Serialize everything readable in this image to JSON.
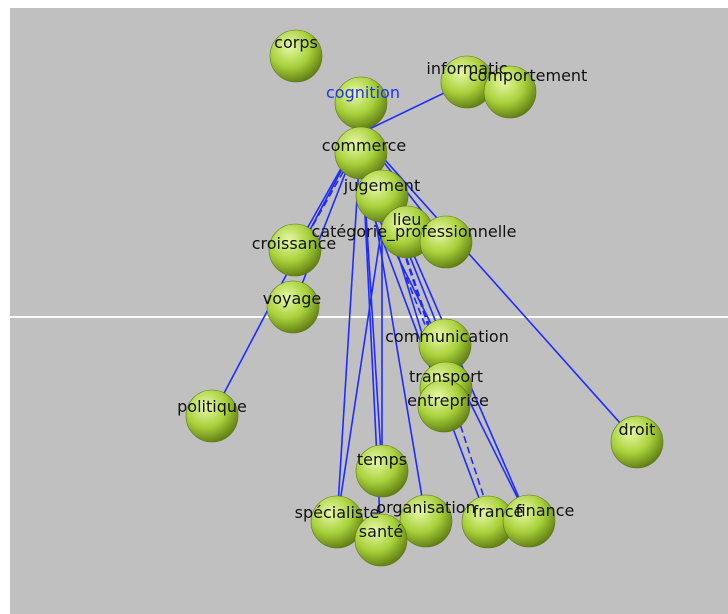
{
  "colors": {
    "background": "#c0c0c0",
    "edge": "#1f2bff",
    "node_fill": "#a8d13a",
    "node_highlight": "#e8f8a8",
    "node_shadow": "#5e7a12",
    "label": "#111111",
    "label_selected": "#2233ee",
    "divider": "#ffffff"
  },
  "graph": {
    "selected_node": "cognition",
    "nodes": [
      {
        "id": "corps",
        "label": "corps"
      },
      {
        "id": "cognition",
        "label": "cognition"
      },
      {
        "id": "informatique",
        "label": "informatic"
      },
      {
        "id": "comportement",
        "label": "comportement"
      },
      {
        "id": "commerce",
        "label": "commerce"
      },
      {
        "id": "jugement",
        "label": "jugement"
      },
      {
        "id": "lieu",
        "label": "lieu"
      },
      {
        "id": "categorie",
        "label": "catégorie_professionnelle"
      },
      {
        "id": "croissance",
        "label": "croissance"
      },
      {
        "id": "voyage",
        "label": "voyage"
      },
      {
        "id": "politique",
        "label": "politique"
      },
      {
        "id": "communication",
        "label": "communication"
      },
      {
        "id": "transport",
        "label": "transport"
      },
      {
        "id": "entreprise",
        "label": "entreprise"
      },
      {
        "id": "droit",
        "label": "droit"
      },
      {
        "id": "temps",
        "label": "temps"
      },
      {
        "id": "specialiste",
        "label": "spécialiste"
      },
      {
        "id": "organisation",
        "label": "organisation"
      },
      {
        "id": "sante",
        "label": "santé"
      },
      {
        "id": "france",
        "label": "france"
      },
      {
        "id": "finance",
        "label": "finance"
      }
    ],
    "edges": [
      {
        "from": "cognition",
        "to": "informatique",
        "dashed": false
      },
      {
        "from": "cognition",
        "to": "commerce",
        "dashed": false
      },
      {
        "from": "cognition",
        "to": "jugement",
        "dashed": false
      },
      {
        "from": "cognition",
        "to": "croissance",
        "dashed": false
      },
      {
        "from": "cognition",
        "to": "croissance",
        "dashed": true
      },
      {
        "from": "cognition",
        "to": "voyage",
        "dashed": false
      },
      {
        "from": "cognition",
        "to": "politique",
        "dashed": false
      },
      {
        "from": "cognition",
        "to": "droit",
        "dashed": false
      },
      {
        "from": "cognition",
        "to": "categorie",
        "dashed": false
      },
      {
        "from": "cognition",
        "to": "lieu",
        "dashed": false
      },
      {
        "from": "cognition",
        "to": "temps",
        "dashed": false
      },
      {
        "from": "cognition",
        "to": "specialiste",
        "dashed": false
      },
      {
        "from": "cognition",
        "to": "sante",
        "dashed": false
      },
      {
        "from": "cognition",
        "to": "organisation",
        "dashed": false
      },
      {
        "from": "cognition",
        "to": "communication",
        "dashed": false
      },
      {
        "from": "cognition",
        "to": "transport",
        "dashed": true
      },
      {
        "from": "cognition",
        "to": "entreprise",
        "dashed": false
      },
      {
        "from": "cognition",
        "to": "france",
        "dashed": true
      },
      {
        "from": "cognition",
        "to": "finance",
        "dashed": false
      },
      {
        "from": "commerce",
        "to": "finance",
        "dashed": false
      },
      {
        "from": "commerce",
        "to": "france",
        "dashed": false
      },
      {
        "from": "jugement",
        "to": "temps",
        "dashed": false
      },
      {
        "from": "jugement",
        "to": "specialiste",
        "dashed": false
      },
      {
        "from": "jugement",
        "to": "transport",
        "dashed": true
      }
    ]
  }
}
